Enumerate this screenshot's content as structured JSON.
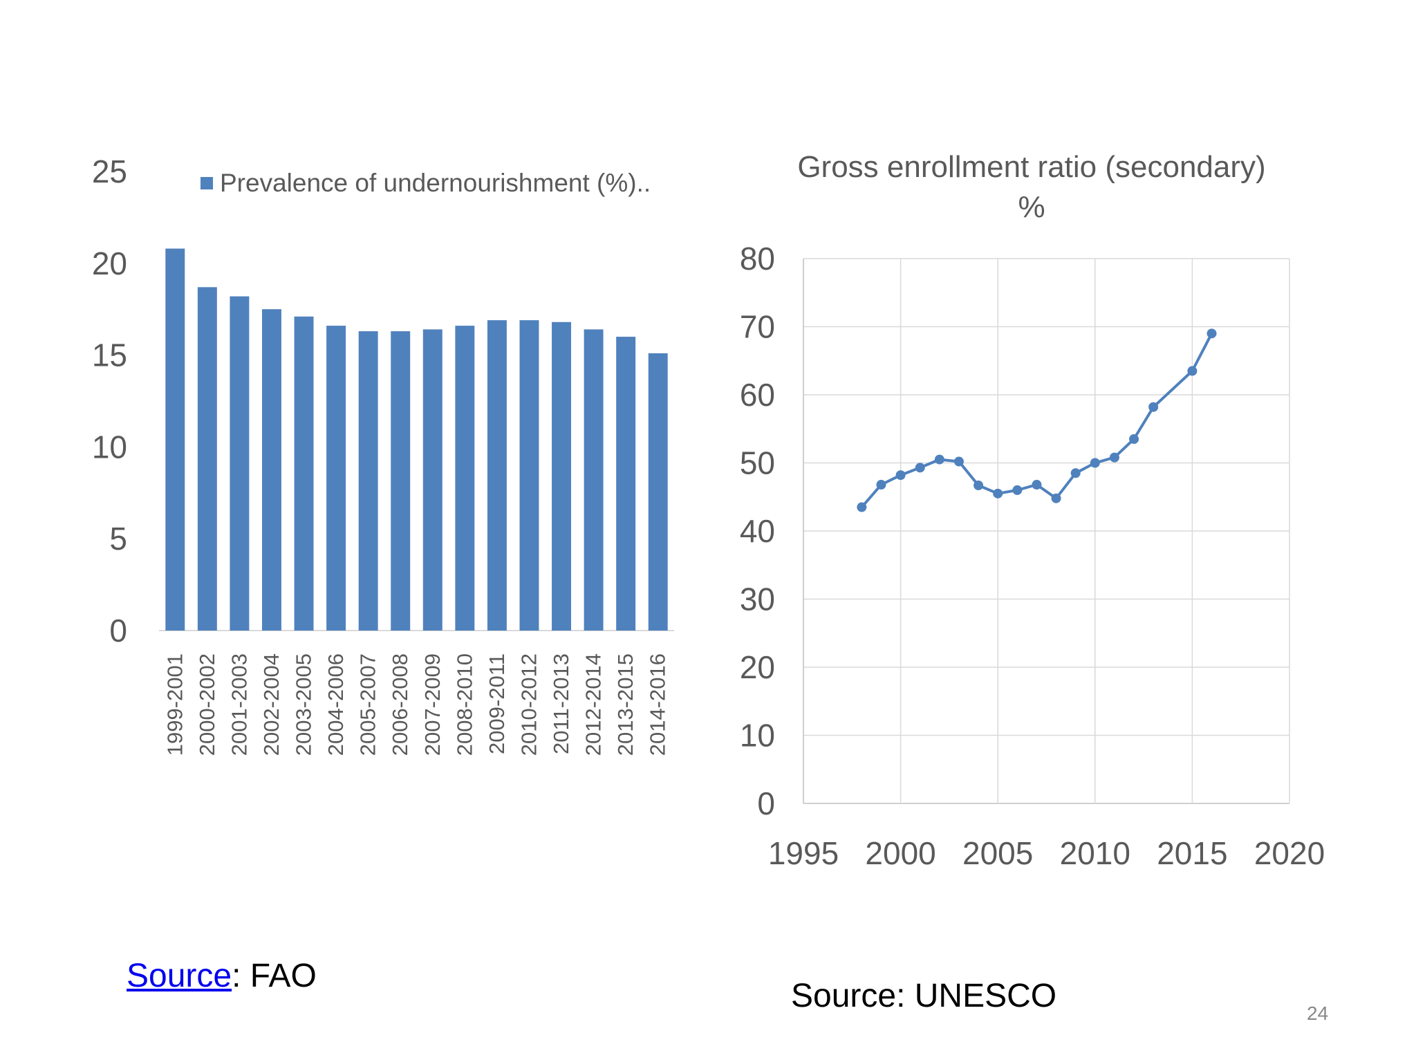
{
  "chart_data": [
    {
      "type": "bar",
      "title": "",
      "xlabel": "",
      "ylabel": "",
      "ylim": [
        0,
        25
      ],
      "yticks": [
        "0",
        "5",
        "10",
        "15",
        "20",
        "25"
      ],
      "legend": {
        "label": "Prevalence of undernourishment (%)..",
        "placement": "top",
        "color": "#4f81bd"
      },
      "categories": [
        "1999-2001",
        "2000-2002",
        "2001-2003",
        "2002-2004",
        "2003-2005",
        "2004-2006",
        "2005-2007",
        "2006-2008",
        "2007-2009",
        "2008-2010",
        "2009-2011",
        "2010-2012",
        "2011-2013",
        "2012-2014",
        "2013-2015",
        "2014-2016"
      ],
      "series": [
        {
          "name": "Prevalence of undernourishment (%)..",
          "color": "#4f81bd",
          "values": [
            20.8,
            18.7,
            18.2,
            17.5,
            17.1,
            16.6,
            16.3,
            16.3,
            16.4,
            16.6,
            16.9,
            16.9,
            16.8,
            16.4,
            16.0,
            15.1
          ]
        }
      ],
      "grid": false
    },
    {
      "type": "scatter",
      "title": "Gross enrollment ratio (secondary)",
      "subtitle": "%",
      "xlabel": "",
      "ylabel": "",
      "xlim": [
        1995,
        2020
      ],
      "ylim": [
        0,
        80
      ],
      "xticks": [
        "1995",
        "2000",
        "2005",
        "2010",
        "2015",
        "2020"
      ],
      "yticks": [
        "0",
        "10",
        "20",
        "30",
        "40",
        "50",
        "60",
        "70",
        "80"
      ],
      "series": [
        {
          "color": "#4f81bd",
          "lines": true,
          "markers": true,
          "x": [
            1998,
            1999,
            2000,
            2001,
            2002,
            2003,
            2004,
            2005,
            2006,
            2007,
            2008,
            2009,
            2010,
            2011,
            2012,
            2013,
            2015,
            2016
          ],
          "y": [
            43.5,
            46.8,
            48.2,
            49.3,
            50.5,
            50.2,
            46.7,
            45.5,
            46.0,
            46.8,
            44.8,
            48.5,
            50.0,
            50.8,
            53.5,
            58.2,
            63.5,
            69.0
          ]
        }
      ],
      "grid": true
    }
  ],
  "footer": {
    "fao_link": "Source",
    "fao_rest": ": FAO",
    "unesco": "Source: UNESCO",
    "page_number": "24"
  }
}
